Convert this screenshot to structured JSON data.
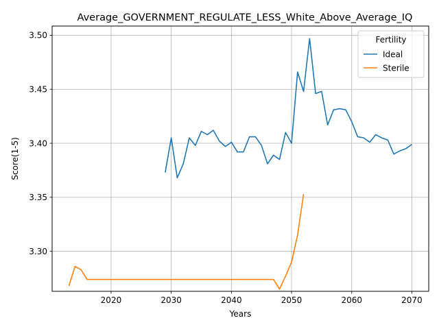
{
  "chart_data": {
    "type": "line",
    "title": "Average_GOVERNMENT_REGULATE_LESS_White_Above_Average_IQ",
    "xlabel": "Years",
    "ylabel": "Score(1-5)",
    "xlim": [
      2010.2,
      2072.8
    ],
    "ylim": [
      3.263,
      3.5085
    ],
    "xticks": [
      2020,
      2030,
      2040,
      2050,
      2060,
      2070
    ],
    "yticks": [
      3.3,
      3.35,
      3.4,
      3.45,
      3.5
    ],
    "ytick_labels": [
      "3.30",
      "3.35",
      "3.40",
      "3.45",
      "3.50"
    ],
    "grid": true,
    "legend": {
      "title": "Fertility",
      "placement": "top-right"
    },
    "series": [
      {
        "name": "Ideal",
        "color": "#1f77b4",
        "x": [
          2029,
          2030,
          2031,
          2032,
          2033,
          2034,
          2035,
          2036,
          2037,
          2038,
          2039,
          2040,
          2041,
          2042,
          2043,
          2044,
          2045,
          2046,
          2047,
          2048,
          2049,
          2050,
          2051,
          2052,
          2053,
          2054,
          2055,
          2056,
          2057,
          2058,
          2059,
          2060,
          2061,
          2062,
          2063,
          2064,
          2065,
          2066,
          2067,
          2068,
          2069,
          2070
        ],
        "y": [
          3.373,
          3.405,
          3.368,
          3.381,
          3.405,
          3.398,
          3.411,
          3.408,
          3.412,
          3.402,
          3.397,
          3.401,
          3.392,
          3.392,
          3.406,
          3.406,
          3.398,
          3.381,
          3.389,
          3.385,
          3.41,
          3.4,
          3.466,
          3.448,
          3.497,
          3.446,
          3.448,
          3.417,
          3.431,
          3.432,
          3.431,
          3.42,
          3.406,
          3.405,
          3.401,
          3.408,
          3.405,
          3.403,
          3.39,
          3.393,
          3.395,
          3.399
        ]
      },
      {
        "name": "Sterile",
        "color": "#ff7f0e",
        "x": [
          2013,
          2014,
          2015,
          2016,
          2017,
          2018,
          2019,
          2020,
          2021,
          2022,
          2023,
          2024,
          2025,
          2026,
          2027,
          2028,
          2029,
          2030,
          2031,
          2032,
          2033,
          2034,
          2035,
          2036,
          2037,
          2038,
          2039,
          2040,
          2041,
          2042,
          2043,
          2044,
          2045,
          2046,
          2047,
          2048,
          2049,
          2050,
          2051,
          2052
        ],
        "y": [
          3.268,
          3.286,
          3.283,
          3.274,
          3.274,
          3.274,
          3.274,
          3.274,
          3.274,
          3.274,
          3.274,
          3.274,
          3.274,
          3.274,
          3.274,
          3.274,
          3.274,
          3.274,
          3.274,
          3.274,
          3.274,
          3.274,
          3.274,
          3.274,
          3.274,
          3.274,
          3.274,
          3.274,
          3.274,
          3.274,
          3.274,
          3.274,
          3.274,
          3.274,
          3.274,
          3.265,
          3.277,
          3.29,
          3.315,
          3.353
        ]
      }
    ]
  }
}
